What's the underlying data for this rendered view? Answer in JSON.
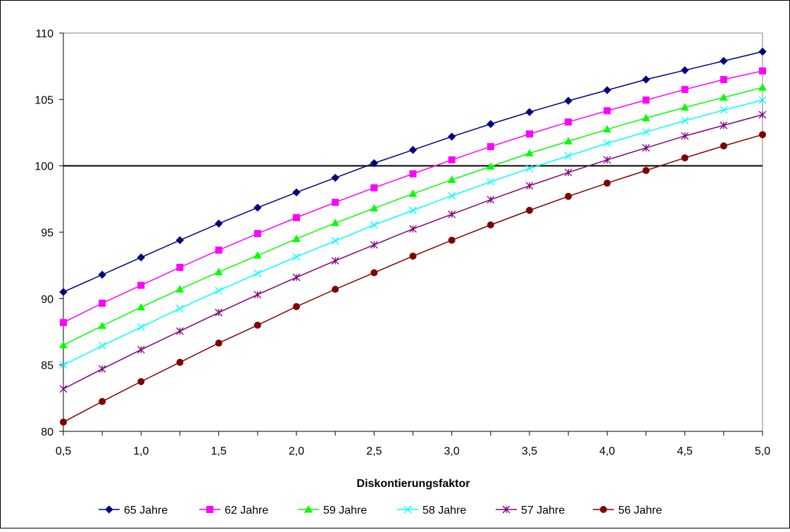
{
  "chart_data": {
    "type": "line",
    "title": "",
    "xlabel": "Diskontierungsfaktor",
    "ylabel": "",
    "x": [
      0.5,
      0.75,
      1.0,
      1.25,
      1.5,
      1.75,
      2.0,
      2.25,
      2.5,
      2.75,
      3.0,
      3.25,
      3.5,
      3.75,
      4.0,
      4.25,
      4.5,
      4.75,
      5.0
    ],
    "xlim": [
      0.5,
      5.0
    ],
    "ylim": [
      80,
      110
    ],
    "x_ticks": [
      "0,5",
      "1,0",
      "1,5",
      "2,0",
      "2,5",
      "3,0",
      "3,5",
      "4,0",
      "4,5",
      "5,0"
    ],
    "y_ticks": [
      "80",
      "85",
      "90",
      "95",
      "100",
      "105",
      "110"
    ],
    "reference_line": 100,
    "grid": false,
    "legend_position": "bottom",
    "series": [
      {
        "name": "65 Jahre",
        "color": "#000080",
        "marker": "diamond",
        "values": [
          90.5,
          91.8,
          93.1,
          94.4,
          95.65,
          96.85,
          98.0,
          99.1,
          100.2,
          101.2,
          102.2,
          103.15,
          104.05,
          104.9,
          105.7,
          106.5,
          107.2,
          107.9,
          108.6
        ]
      },
      {
        "name": "62 Jahre",
        "color": "#FF00FF",
        "marker": "square",
        "values": [
          88.2,
          89.65,
          91.0,
          92.35,
          93.65,
          94.9,
          96.1,
          97.25,
          98.35,
          99.4,
          100.45,
          101.45,
          102.4,
          103.3,
          104.15,
          104.95,
          105.75,
          106.5,
          107.15
        ]
      },
      {
        "name": "59 Jahre",
        "color": "#00FF00",
        "marker": "triangle",
        "values": [
          86.5,
          87.95,
          89.35,
          90.7,
          92.0,
          93.25,
          94.5,
          95.7,
          96.8,
          97.9,
          98.95,
          99.95,
          100.95,
          101.85,
          102.75,
          103.6,
          104.4,
          105.15,
          105.9
        ]
      },
      {
        "name": "58 Jahre",
        "color": "#00FFFF",
        "marker": "x",
        "values": [
          85.0,
          86.45,
          87.85,
          89.25,
          90.6,
          91.9,
          93.15,
          94.35,
          95.55,
          96.65,
          97.75,
          98.8,
          99.8,
          100.75,
          101.7,
          102.55,
          103.4,
          104.2,
          104.95
        ]
      },
      {
        "name": "57 Jahre",
        "color": "#800080",
        "marker": "star",
        "values": [
          83.2,
          84.7,
          86.15,
          87.55,
          88.95,
          90.3,
          91.6,
          92.85,
          94.05,
          95.25,
          96.35,
          97.45,
          98.5,
          99.5,
          100.45,
          101.35,
          102.25,
          103.05,
          103.85
        ]
      },
      {
        "name": "56 Jahre",
        "color": "#800000",
        "marker": "circle",
        "values": [
          80.7,
          82.25,
          83.75,
          85.2,
          86.65,
          88.0,
          89.4,
          90.7,
          91.95,
          93.2,
          94.4,
          95.55,
          96.65,
          97.7,
          98.7,
          99.65,
          100.6,
          101.5,
          102.35
        ]
      }
    ]
  }
}
